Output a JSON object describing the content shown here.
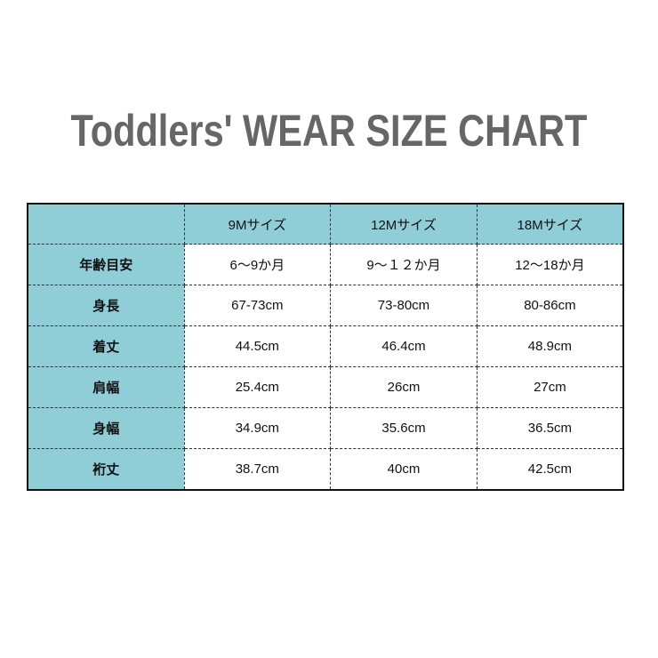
{
  "title": "Toddlers' WEAR SIZE CHART",
  "colors": {
    "header_bg": "#8fcdd7",
    "title": "#666666"
  },
  "table": {
    "columns": [
      "",
      "9Mサイズ",
      "12Mサイズ",
      "18Mサイズ"
    ],
    "rows": [
      {
        "label": "年齢目安",
        "values": [
          "6〜9か月",
          "9〜１２か月",
          "12〜18か月"
        ]
      },
      {
        "label": "身長",
        "values": [
          "67-73cm",
          "73-80cm",
          "80-86cm"
        ]
      },
      {
        "label": "着丈",
        "values": [
          "44.5cm",
          "46.4cm",
          "48.9cm"
        ]
      },
      {
        "label": "肩幅",
        "values": [
          "25.4cm",
          "26cm",
          "27cm"
        ]
      },
      {
        "label": "身幅",
        "values": [
          "34.9cm",
          "35.6cm",
          "36.5cm"
        ]
      },
      {
        "label": "裄丈",
        "values": [
          "38.7cm",
          "40cm",
          "42.5cm"
        ]
      }
    ]
  }
}
